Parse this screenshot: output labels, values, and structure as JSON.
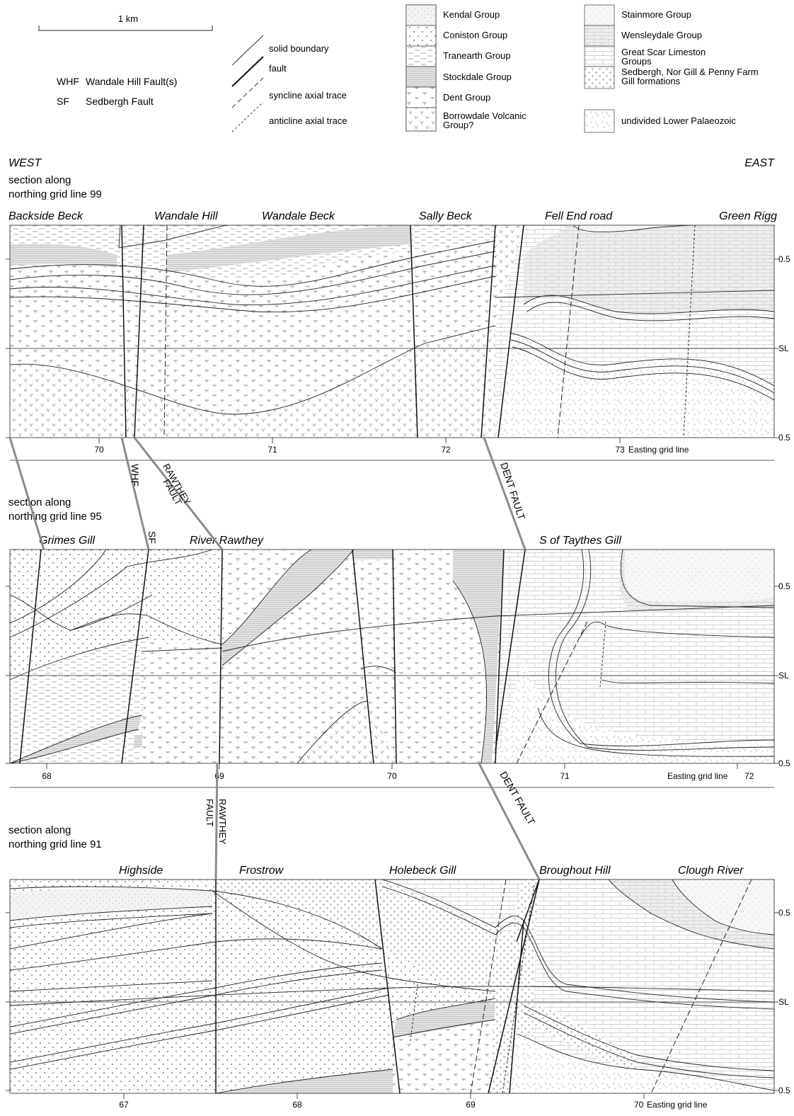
{
  "scale_bar": {
    "label": "1 km"
  },
  "abbreviations": [
    {
      "code": "WHF",
      "text": "Wandale Hill Fault(s)"
    },
    {
      "code": "SF",
      "text": "Sedbergh Fault"
    }
  ],
  "line_key": [
    {
      "label": "solid boundary"
    },
    {
      "label": "fault"
    },
    {
      "label": "syncline axial trace"
    },
    {
      "label": "anticline axial trace"
    }
  ],
  "units_left": [
    {
      "label": "Kendal Group"
    },
    {
      "label": "Coniston Group"
    },
    {
      "label": "Tranearth Group"
    },
    {
      "label": "Stockdale Group"
    },
    {
      "label": "Dent Group"
    },
    {
      "label": "Borrowdale Volcanic",
      "label2": "Group?"
    }
  ],
  "units_right": [
    {
      "label": "Stainmore Group"
    },
    {
      "label": "Wensleydale Group"
    },
    {
      "label": "Great Scar Limeston",
      "label2": "Groups"
    },
    {
      "label": "Sedbergh, Nor Gill & Penny Farm",
      "label2": "Gill formations"
    },
    {
      "label": "undivided Lower Palaeozoic"
    }
  ],
  "direction": {
    "west": "WEST",
    "east": "EAST"
  },
  "sections": [
    {
      "title": [
        "section along",
        "northing grid line 99"
      ],
      "places": [
        "Backside Beck",
        "Wandale Hill",
        "Wandale Beck",
        "Sally Beck",
        "Fell End road",
        "Green Rigg"
      ],
      "ticks": [
        "70",
        "71",
        "72",
        "73"
      ],
      "axis_note": "Easting grid line",
      "right_labels": [
        "0.5",
        "SL",
        "0.5"
      ]
    },
    {
      "title": [
        "section along",
        "northing grid line 95"
      ],
      "places": [
        "Grimes Gill",
        "River Rawthey",
        "S of Taythes Gill"
      ],
      "ticks": [
        "68",
        "69",
        "70",
        "71",
        "72"
      ],
      "axis_note": "Easting grid line",
      "right_labels": [
        "0.5",
        "SL",
        "0.5"
      ]
    },
    {
      "title": [
        "section along",
        "northing grid line 91"
      ],
      "places": [
        "Highside",
        "Frostrow",
        "Holebeck Gill",
        "Broughout Hill",
        "Clough River"
      ],
      "ticks": [
        "67",
        "68",
        "69",
        "70"
      ],
      "axis_note": "Easting grid line",
      "right_labels": [
        "0.5",
        "SL",
        "0.5"
      ]
    }
  ],
  "fault_labels": {
    "whf": "WHF",
    "sf": "SF",
    "rawthey": [
      "RAWTHEY",
      "FAULT"
    ],
    "dent": "DENT FAULT"
  }
}
